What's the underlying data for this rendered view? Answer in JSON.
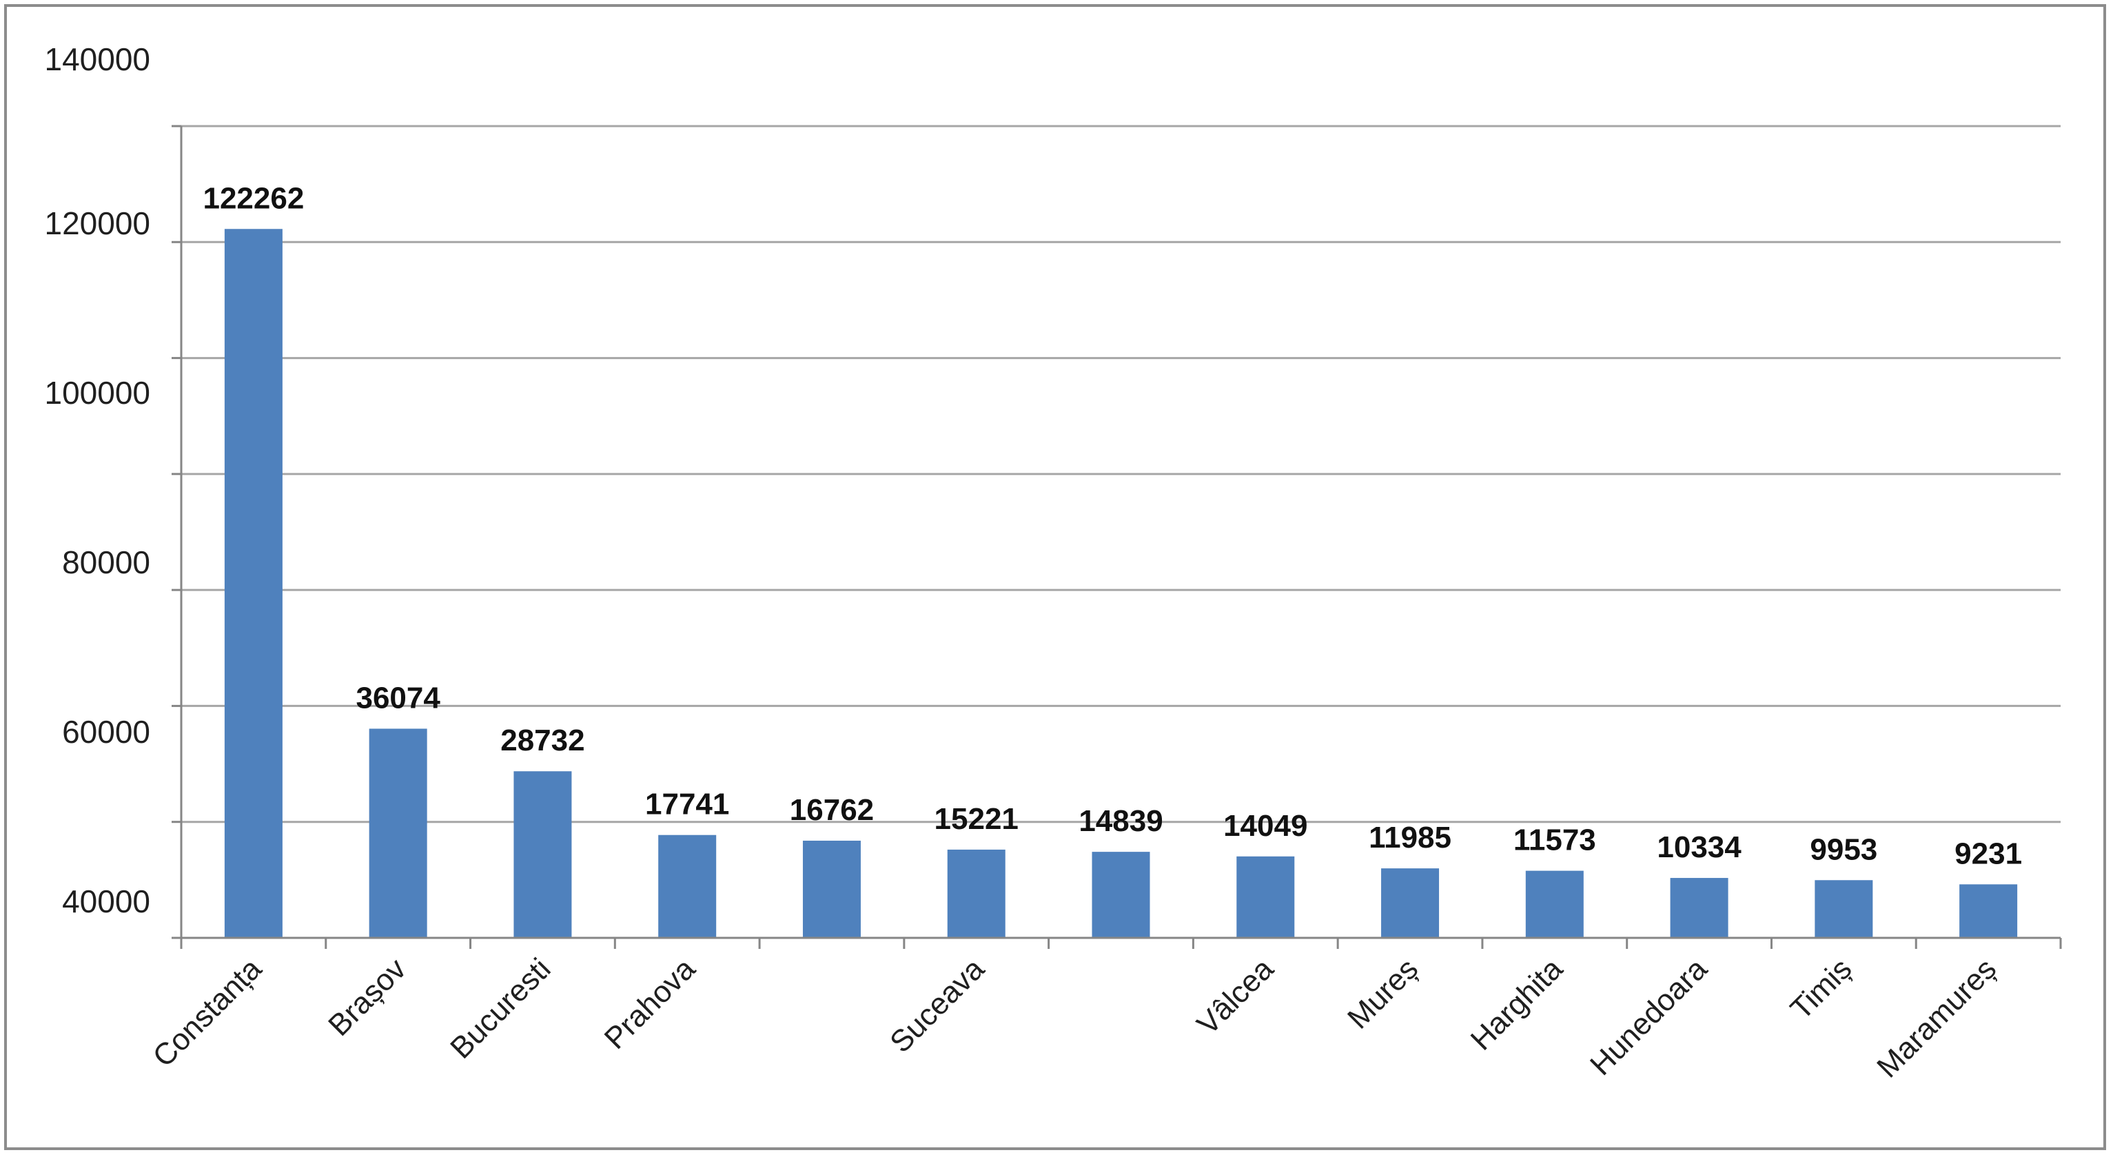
{
  "chart_data": {
    "type": "bar",
    "categories": [
      "Constanța",
      "Brașov",
      "Bucuresti",
      "Prahova",
      "",
      "Suceava",
      "",
      "Vâlcea",
      "Mureș",
      "Harghita",
      "Hunedoara",
      "Timiș",
      "Maramureș"
    ],
    "values": [
      122262,
      36074,
      28732,
      17741,
      16762,
      15221,
      14839,
      14049,
      11985,
      11573,
      10334,
      9953,
      9231
    ],
    "data_labels": [
      "122262",
      "36074",
      "28732",
      "17741",
      "16762",
      "15221",
      "14839",
      "14049",
      "11985",
      "11573",
      "10334",
      "9953",
      "9231"
    ],
    "y_tick_labels": [
      "140000",
      "120000",
      "100000",
      "80000",
      "60000",
      "40000"
    ],
    "ylim": [
      0,
      140000
    ],
    "title": "",
    "xlabel": "",
    "ylabel": "",
    "grid": true,
    "legend": "none",
    "bar_color": "#4f81bd",
    "gridline_color": "#a6a6a6",
    "axis_color": "#868686"
  }
}
